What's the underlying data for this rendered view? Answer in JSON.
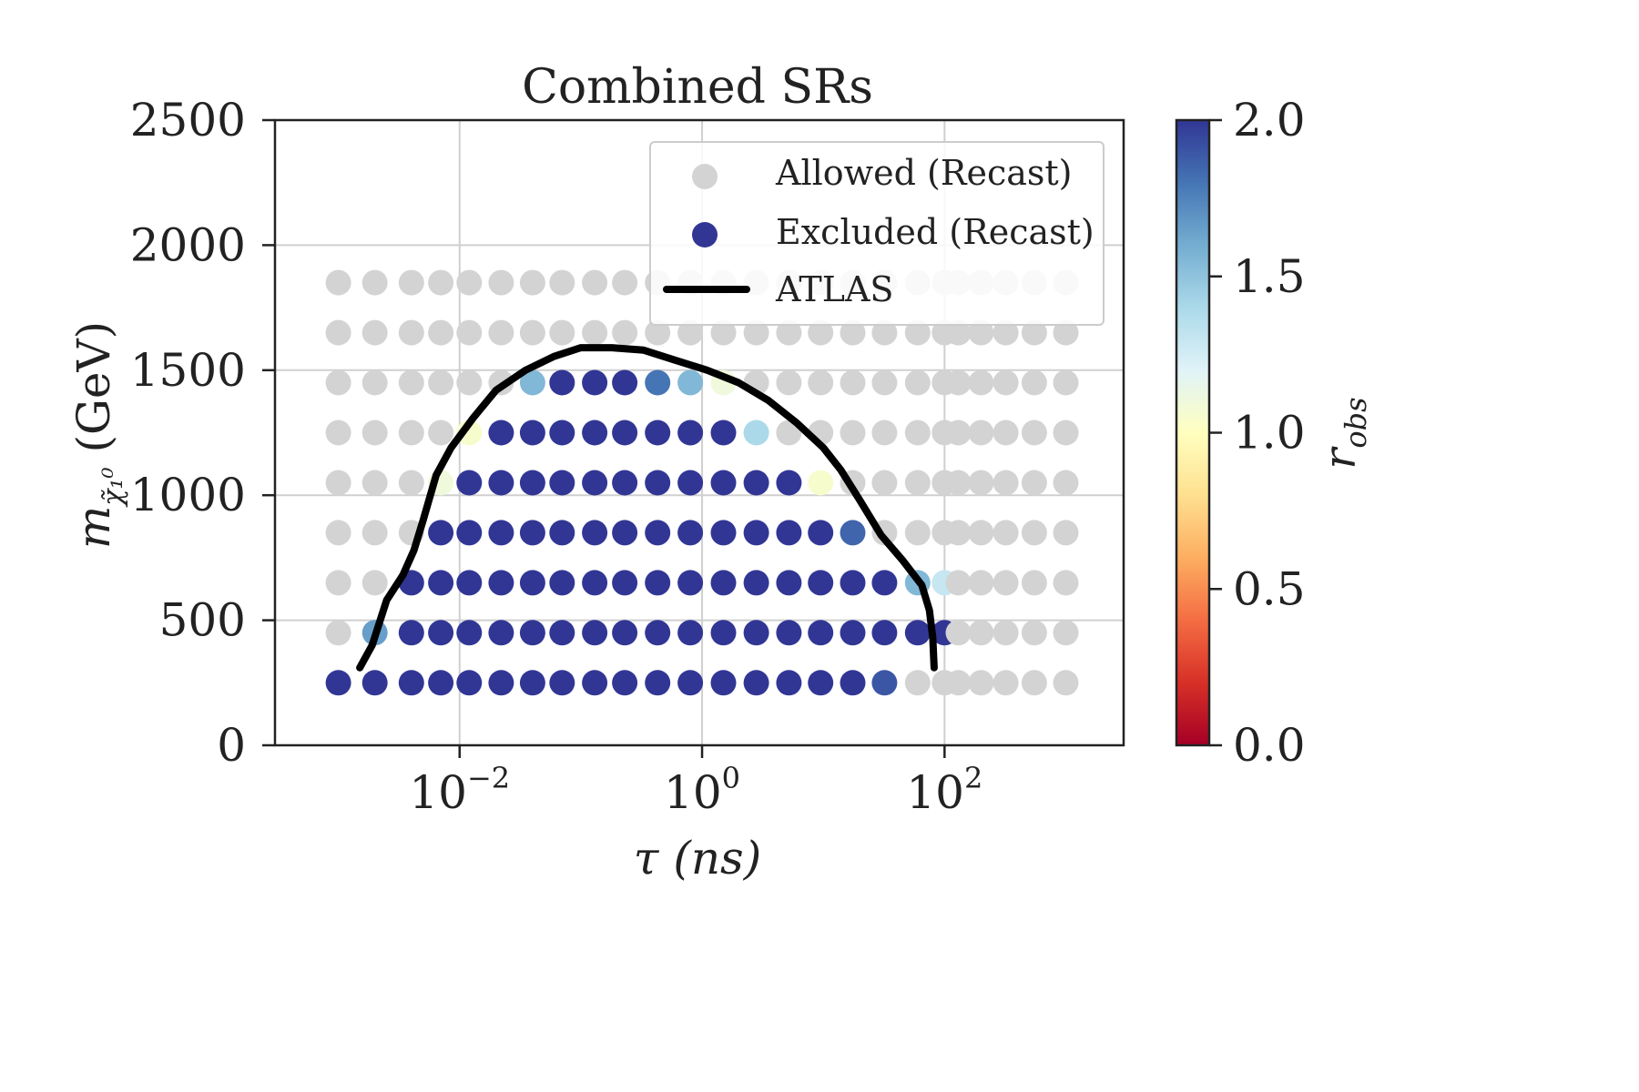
{
  "chart_data": {
    "type": "scatter",
    "title": "Combined SRs",
    "xlabel": "τ (ns)",
    "ylabel": {
      "symbol": "m",
      "subscript": "χ̃₁⁰",
      "unit": "(GeV)"
    },
    "x_scale": "log",
    "xlim": [
      0.0003,
      3000
    ],
    "ylim": [
      0,
      2500
    ],
    "x_ticks": [
      {
        "value": 0.01,
        "base": "10",
        "exp": "−2"
      },
      {
        "value": 1,
        "base": "10",
        "exp": "0"
      },
      {
        "value": 100,
        "base": "10",
        "exp": "2"
      }
    ],
    "y_ticks": [
      0,
      500,
      1000,
      1500,
      2000,
      2500
    ],
    "grid": true,
    "legend": {
      "position": "top-right",
      "entries": [
        {
          "label": "Allowed (Recast)",
          "marker": "circle",
          "color": "#d3d3d3"
        },
        {
          "label": "Excluded (Recast)",
          "marker": "circle",
          "color": "#313695"
        },
        {
          "label": "ATLAS",
          "marker": "line",
          "color": "#000000"
        }
      ]
    },
    "colorbar": {
      "label": "r_obs",
      "label_symbol": "r",
      "label_subscript": "obs",
      "colormap": "RdYlBu",
      "range": [
        0,
        2
      ],
      "ticks": [
        "0.0",
        "0.5",
        "1.0",
        "1.5",
        "2.0"
      ],
      "stops": [
        "#a50026",
        "#d73027",
        "#f46d43",
        "#fdae61",
        "#fee090",
        "#ffffbf",
        "#e0f3f8",
        "#abd9e9",
        "#74add1",
        "#4575b4",
        "#313695"
      ]
    },
    "allowed_color": "#d3d3d3",
    "x_values": [
      0.001,
      0.002,
      0.004,
      0.007,
      0.012,
      0.022,
      0.04,
      0.07,
      0.13,
      0.23,
      0.43,
      0.8,
      1.5,
      2.8,
      5.2,
      9.5,
      17.5,
      32,
      60,
      100,
      130,
      200,
      320,
      550,
      1000
    ],
    "rows": [
      {
        "mass": 1850,
        "r": [
          0,
          0,
          0,
          0,
          0,
          0,
          0,
          0,
          0,
          0,
          0,
          0,
          0,
          0,
          0,
          0,
          0,
          0,
          0,
          0,
          0,
          0,
          0,
          0,
          0
        ]
      },
      {
        "mass": 1650,
        "r": [
          0,
          0,
          0,
          0,
          0,
          0,
          0,
          0,
          0,
          0,
          0,
          0,
          0,
          0,
          0,
          0,
          0,
          0,
          0,
          0,
          0,
          0,
          0,
          0,
          0
        ]
      },
      {
        "mass": 1450,
        "r": [
          0,
          0,
          0,
          0,
          0,
          0,
          1.55,
          2,
          2,
          2,
          1.8,
          1.55,
          1.1,
          0,
          0,
          0,
          0,
          0,
          0,
          0,
          0,
          0,
          0,
          0,
          0
        ]
      },
      {
        "mass": 1250,
        "r": [
          0,
          0,
          0,
          0,
          1.05,
          2,
          2,
          2,
          2,
          2,
          2,
          2,
          2,
          1.4,
          0,
          0,
          0,
          0,
          0,
          0,
          0,
          0,
          0,
          0,
          0
        ]
      },
      {
        "mass": 1050,
        "r": [
          0,
          0,
          0,
          1.1,
          2,
          2,
          2,
          2,
          2,
          2,
          2,
          2,
          2,
          2,
          2,
          1.05,
          0,
          0,
          0,
          0,
          0,
          0,
          0,
          0,
          0
        ]
      },
      {
        "mass": 850,
        "r": [
          0,
          0,
          0,
          2,
          2,
          2,
          2,
          2,
          2,
          2,
          2,
          2,
          2,
          2,
          2,
          2,
          1.85,
          0,
          0,
          0,
          0,
          0,
          0,
          0,
          0
        ]
      },
      {
        "mass": 650,
        "r": [
          0,
          0,
          2,
          2,
          2,
          2,
          2,
          2,
          2,
          2,
          2,
          2,
          2,
          2,
          2,
          2,
          2,
          2,
          1.55,
          1.3,
          0,
          0,
          0,
          0,
          0
        ]
      },
      {
        "mass": 450,
        "r": [
          0,
          1.65,
          2,
          2,
          2,
          2,
          2,
          2,
          2,
          2,
          2,
          2,
          2,
          2,
          2,
          2,
          2,
          2,
          2,
          2,
          0,
          0,
          0,
          0,
          0
        ]
      },
      {
        "mass": 250,
        "r": [
          2,
          2,
          2,
          2,
          2,
          2,
          2,
          2,
          2,
          2,
          2,
          2,
          2,
          2,
          2,
          2,
          2,
          1.9,
          0,
          0,
          0,
          0,
          0,
          0,
          0
        ]
      }
    ],
    "atlas_curve": {
      "x": [
        0.0015,
        0.0019,
        0.0025,
        0.0034,
        0.0042,
        0.005,
        0.0064,
        0.0085,
        0.013,
        0.02,
        0.035,
        0.06,
        0.1,
        0.18,
        0.33,
        0.6,
        1.1,
        2,
        3.5,
        6,
        10,
        14,
        20,
        30,
        45,
        65,
        75,
        80,
        82
      ],
      "y": [
        310,
        400,
        580,
        680,
        780,
        900,
        1080,
        1190,
        1310,
        1420,
        1500,
        1555,
        1590,
        1590,
        1580,
        1540,
        1500,
        1450,
        1380,
        1290,
        1190,
        1100,
        980,
        840,
        740,
        640,
        540,
        430,
        310
      ]
    }
  }
}
